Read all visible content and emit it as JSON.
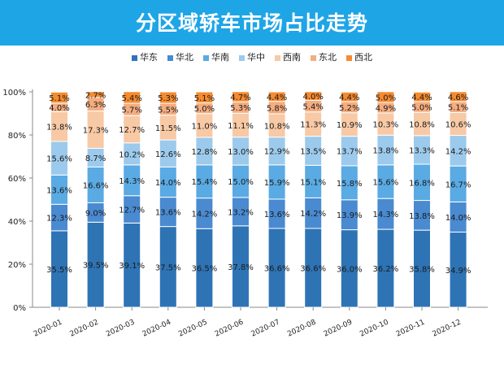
{
  "title": "分区域轿车市场占比走势",
  "chart_data": {
    "type": "bar",
    "stacked": true,
    "categories": [
      "2020-01",
      "2020-02",
      "2020-03",
      "2020-04",
      "2020-05",
      "2020-06",
      "2020-07",
      "2020-08",
      "2020-09",
      "2020-10",
      "2020-11",
      "2020-12"
    ],
    "series": [
      {
        "name": "华东",
        "color": "#2e74b5",
        "values": [
          35.5,
          39.5,
          39.1,
          37.5,
          36.5,
          37.8,
          36.6,
          36.6,
          36.0,
          36.2,
          35.8,
          34.9
        ]
      },
      {
        "name": "华北",
        "color": "#4a8ad0",
        "values": [
          12.3,
          9.0,
          12.7,
          13.6,
          14.2,
          13.2,
          13.6,
          14.2,
          13.9,
          14.3,
          13.8,
          14.0
        ]
      },
      {
        "name": "华南",
        "color": "#5aaae3",
        "values": [
          13.6,
          16.6,
          14.3,
          14.0,
          15.4,
          15.0,
          15.9,
          15.1,
          15.8,
          15.6,
          16.8,
          16.7
        ]
      },
      {
        "name": "华中",
        "color": "#9ccaec",
        "values": [
          15.6,
          8.7,
          10.2,
          12.6,
          12.8,
          13.0,
          12.9,
          13.5,
          13.7,
          13.8,
          13.3,
          14.2
        ]
      },
      {
        "name": "西南",
        "color": "#f8c9a5",
        "values": [
          13.8,
          17.3,
          12.7,
          11.5,
          11.0,
          11.1,
          10.8,
          11.3,
          10.9,
          10.3,
          10.8,
          10.6
        ]
      },
      {
        "name": "东北",
        "color": "#f4ad80",
        "values": [
          4.0,
          6.3,
          5.7,
          5.5,
          5.0,
          5.3,
          5.8,
          5.4,
          5.2,
          4.9,
          5.0,
          5.1
        ]
      },
      {
        "name": "西北",
        "color": "#f58b2f",
        "values": [
          5.1,
          2.7,
          5.4,
          5.3,
          5.1,
          4.7,
          4.4,
          4.0,
          4.4,
          5.0,
          4.4,
          4.6
        ]
      }
    ],
    "yticks": [
      "0%",
      "20%",
      "40%",
      "60%",
      "80%",
      "100%"
    ],
    "ylim": [
      0,
      100
    ],
    "legend": "top",
    "grid": false,
    "data_labels": true
  }
}
